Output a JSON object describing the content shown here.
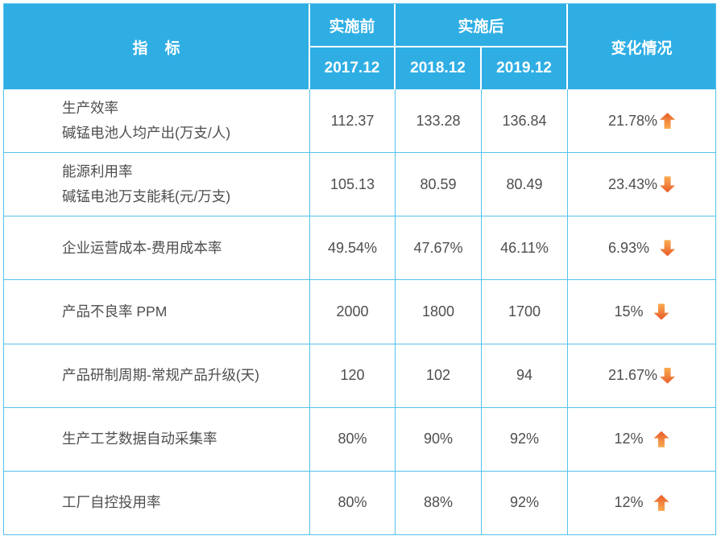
{
  "chart_data": {
    "type": "table",
    "header": {
      "indicator_label": "指    标",
      "before_label": "实施前",
      "after_label": "实施后",
      "change_label": "变化情况",
      "period_labels": [
        "2017.12",
        "2018.12",
        "2019.12"
      ]
    },
    "rows": [
      {
        "indicator": [
          "生产效率",
          "碱锰电池人均产出(万支/人)"
        ],
        "values": [
          "112.37",
          "133.28",
          "136.84"
        ],
        "change": {
          "value": "21.78%",
          "direction": "up",
          "spaced": false
        }
      },
      {
        "indicator": [
          "能源利用率",
          "碱锰电池万支能耗(元/万支)"
        ],
        "values": [
          "105.13",
          "80.59",
          "80.49"
        ],
        "change": {
          "value": "23.43%",
          "direction": "down",
          "spaced": false
        }
      },
      {
        "indicator": [
          "企业运营成本-费用成本率"
        ],
        "values": [
          "49.54%",
          "47.67%",
          "46.11%"
        ],
        "change": {
          "value": "6.93%",
          "direction": "down",
          "spaced": true
        }
      },
      {
        "indicator": [
          "产品不良率 PPM"
        ],
        "values": [
          "2000",
          "1800",
          "1700"
        ],
        "change": {
          "value": "15%",
          "direction": "down",
          "spaced": true
        }
      },
      {
        "indicator": [
          "产品研制周期-常规产品升级(天)"
        ],
        "values": [
          "120",
          "102",
          "94"
        ],
        "change": {
          "value": "21.67%",
          "direction": "down",
          "spaced": false
        }
      },
      {
        "indicator": [
          "生产工艺数据自动采集率"
        ],
        "values": [
          "80%",
          "90%",
          "92%"
        ],
        "change": {
          "value": "12%",
          "direction": "up",
          "spaced": true
        }
      },
      {
        "indicator": [
          "工厂自控投用率"
        ],
        "values": [
          "80%",
          "88%",
          "92%"
        ],
        "change": {
          "value": "12%",
          "direction": "up",
          "spaced": true
        }
      }
    ],
    "colors": {
      "header_background": "#2FAEE4",
      "grid_line": "#55C1EC",
      "body_text": "#4E4E4E",
      "header_text": "#FFFFFF",
      "arrow_dark": "#E85A27",
      "arrow_light": "#FAAB4E"
    }
  }
}
